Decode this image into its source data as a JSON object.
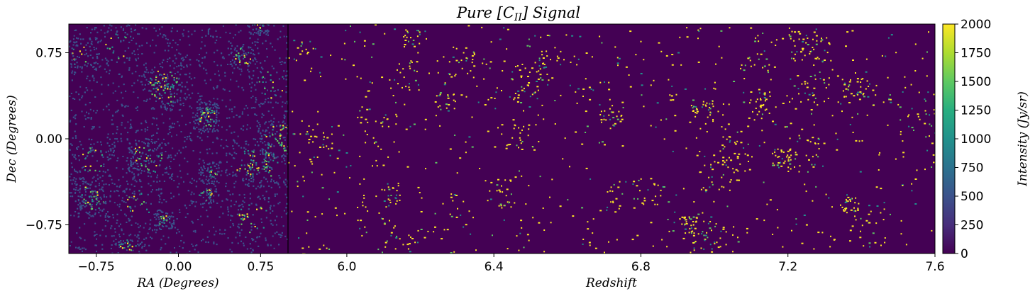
{
  "chart_data": {
    "type": "heatmap",
    "title_parts": {
      "pre": "Pure [C",
      "sub": "II",
      "post": "] Signal"
    },
    "panels": [
      {
        "name": "sky-map",
        "xlabel": "RA (Degrees)",
        "ylabel": "Dec (Degrees)",
        "xlim": [
          -1.0,
          1.0
        ],
        "ylim": [
          -1.0,
          1.0
        ],
        "xticks": [
          -0.75,
          0.0,
          0.75
        ],
        "xtick_labels": [
          "−0.75",
          "0.00",
          "0.75"
        ],
        "yticks": [
          0.75,
          0.0,
          -0.75
        ],
        "ytick_labels": [
          "0.75",
          "0.00",
          "−0.75"
        ]
      },
      {
        "name": "redshift-slice",
        "xlabel": "Redshift",
        "xlim": [
          5.84,
          7.6
        ],
        "xticks": [
          6.0,
          6.4,
          6.8,
          7.2,
          7.6
        ],
        "xtick_labels": [
          "6.0",
          "6.4",
          "6.8",
          "7.2",
          "7.6"
        ]
      }
    ],
    "colorbar": {
      "label": "Intensity (Jy/sr)",
      "range": [
        0,
        2000
      ],
      "ticks": [
        0,
        250,
        500,
        750,
        1000,
        1250,
        1500,
        1750,
        2000
      ],
      "tick_labels": [
        "0",
        "250",
        "500",
        "750",
        "1000",
        "1250",
        "1500",
        "1750",
        "2000"
      ],
      "colormap": "viridis"
    },
    "colors": {
      "background": "#440154",
      "low": "#3b528b",
      "mid": "#21918c",
      "high": "#5ec962",
      "peak": "#fde725"
    }
  }
}
